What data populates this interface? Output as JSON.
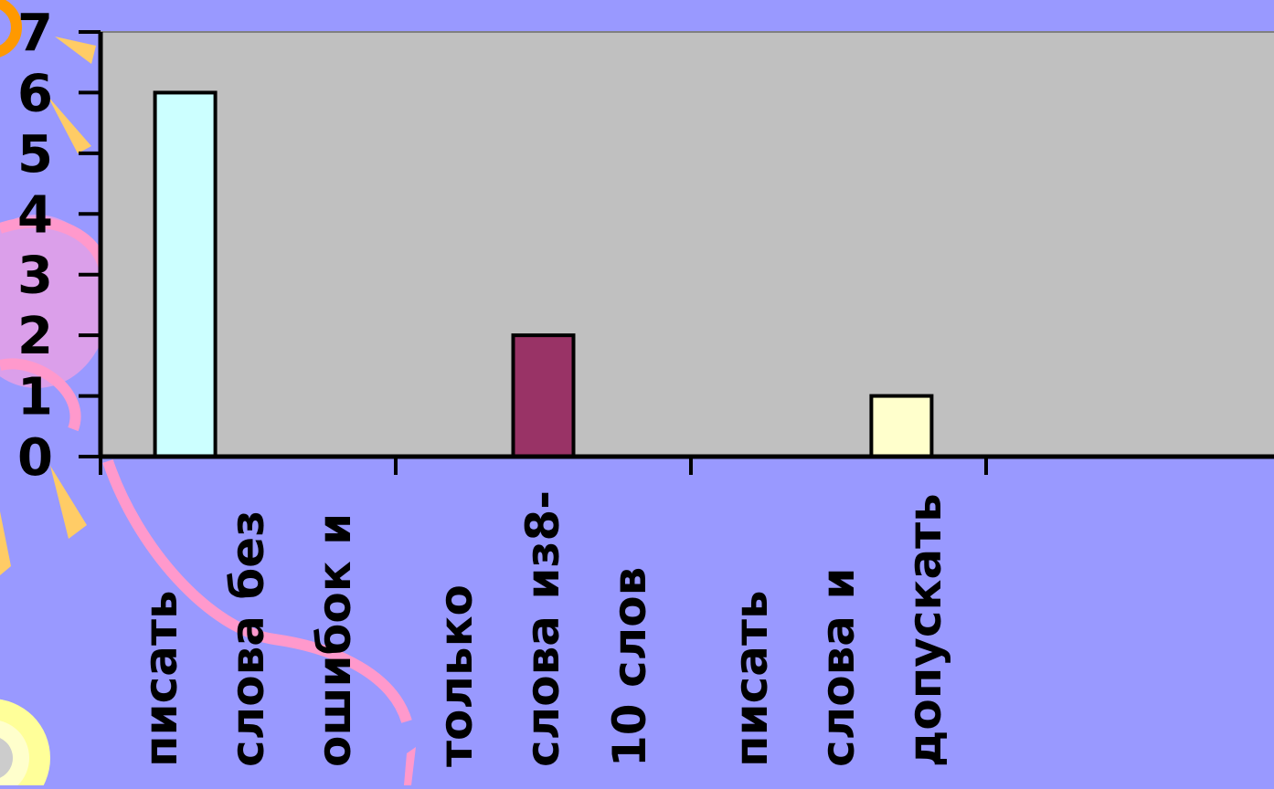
{
  "chart_data": {
    "type": "bar",
    "title": "",
    "xlabel": "",
    "ylabel": "",
    "ylim": [
      0,
      7
    ],
    "yticks": [
      "0",
      "1",
      "2",
      "3",
      "4",
      "5",
      "6",
      "7"
    ],
    "categories": [
      [
        "писать",
        "слова без",
        "ошибок и"
      ],
      [
        "только",
        "слова из8-",
        "10 слов"
      ],
      [
        "писать",
        "слова и",
        "допускать"
      ]
    ],
    "series": [
      {
        "values": [
          6,
          0,
          0
        ],
        "color": "#ccffff"
      },
      {
        "values": [
          0,
          2,
          0
        ],
        "color": "#993366"
      },
      {
        "values": [
          0,
          0,
          1
        ],
        "color": "#ffffcc"
      }
    ],
    "plot_background": "#c0c0c0",
    "page_background": "#9999ff",
    "grid": false,
    "legend": "none"
  }
}
